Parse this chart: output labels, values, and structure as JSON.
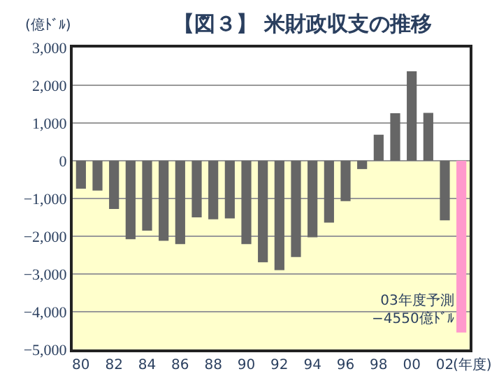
{
  "chart_data": {
    "type": "bar",
    "title": "【図３】 米財政収支の推移",
    "ylabel": "(億ﾄﾞﾙ)",
    "xlabel": "(年度)",
    "categories": [
      "80",
      null,
      "82",
      null,
      "84",
      null,
      "86",
      null,
      "88",
      null,
      "90",
      null,
      "92",
      null,
      "94",
      null,
      "96",
      null,
      "98",
      null,
      "00",
      null,
      "02",
      null
    ],
    "values": [
      -740,
      -790,
      -1280,
      -2080,
      -1850,
      -2120,
      -2210,
      -1500,
      -1550,
      -1530,
      -2210,
      -2690,
      -2900,
      -2550,
      -2030,
      -1640,
      -1070,
      -220,
      690,
      1260,
      2370,
      1270,
      -1580,
      -4550
    ],
    "colors": [
      "#666666",
      "#666666",
      "#666666",
      "#666666",
      "#666666",
      "#666666",
      "#666666",
      "#666666",
      "#666666",
      "#666666",
      "#666666",
      "#666666",
      "#666666",
      "#666666",
      "#666666",
      "#666666",
      "#666666",
      "#666666",
      "#666666",
      "#666666",
      "#666666",
      "#666666",
      "#666666",
      "#ff99cc"
    ],
    "ylim": [
      -5000,
      3000
    ],
    "yticks": [
      {
        "value": -5000,
        "label": "−5,000"
      },
      {
        "value": -4000,
        "label": "−4,000"
      },
      {
        "value": -3000,
        "label": "−3,000"
      },
      {
        "value": -2000,
        "label": "−2,000"
      },
      {
        "value": -1000,
        "label": "−1,000"
      },
      0,
      {
        "value": 1000,
        "label": "1,000"
      },
      {
        "value": 2000,
        "label": "2,000"
      },
      {
        "value": 3000,
        "label": "3,000"
      }
    ],
    "grid": "y",
    "bands": [
      {
        "axis": "y",
        "from": -5000,
        "to": 0,
        "color": "#ffffcc"
      }
    ],
    "annotations": [
      "03年度予測\n−4550億ﾄﾞﾙ"
    ]
  }
}
